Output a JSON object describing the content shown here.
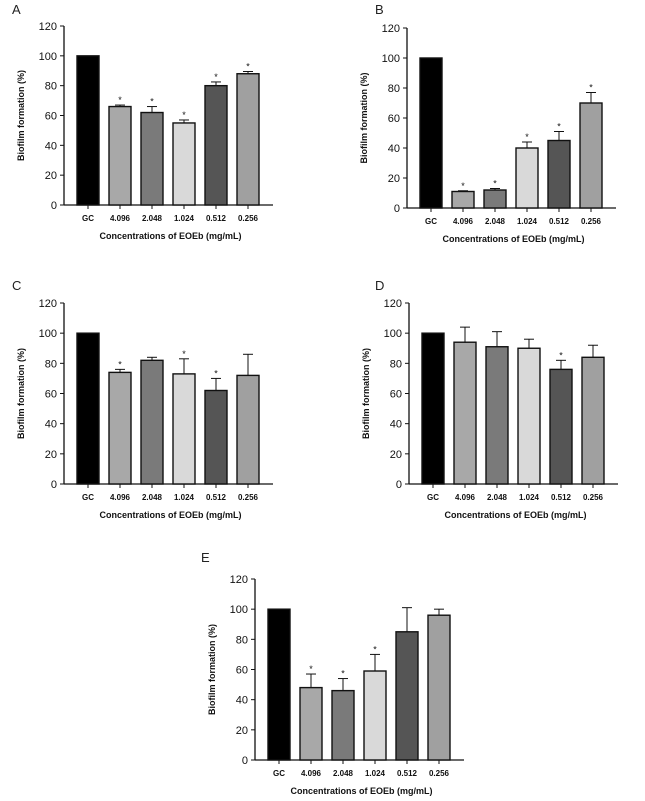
{
  "chart_data": [
    {
      "panel": "A",
      "type": "bar",
      "ylabel": "Biofilm formation (%)",
      "xlabel": "Concentrations of EOEb (mg/mL)",
      "ylim": [
        0,
        120
      ],
      "yticks": [
        0,
        20,
        40,
        60,
        80,
        100,
        120
      ],
      "categories": [
        "GC",
        "4.096",
        "2.048",
        "1.024",
        "0.512",
        "0.256"
      ],
      "values": [
        100,
        66,
        62,
        55,
        80,
        88
      ],
      "errors": [
        0,
        1,
        4,
        2,
        2.5,
        1.5
      ],
      "significant": [
        false,
        true,
        true,
        true,
        true,
        true
      ],
      "significance_marker": "*",
      "colors": [
        "#000000",
        "#a8a8a8",
        "#7a7a7a",
        "#d9d9d9",
        "#555555",
        "#a0a0a0"
      ]
    },
    {
      "panel": "B",
      "type": "bar",
      "ylabel": "Biofilm formation (%)",
      "xlabel": "Concentrations of EOEb (mg/mL)",
      "ylim": [
        0,
        120
      ],
      "yticks": [
        0,
        20,
        40,
        60,
        80,
        100,
        120
      ],
      "categories": [
        "GC",
        "4.096",
        "2.048",
        "1.024",
        "0.512",
        "0.256"
      ],
      "values": [
        100,
        11,
        12,
        40,
        45,
        70
      ],
      "errors": [
        0,
        0.5,
        1,
        4,
        6,
        7
      ],
      "significant": [
        false,
        true,
        true,
        true,
        true,
        true
      ],
      "significance_marker": "*",
      "colors": [
        "#000000",
        "#a8a8a8",
        "#7a7a7a",
        "#d9d9d9",
        "#555555",
        "#a0a0a0"
      ]
    },
    {
      "panel": "C",
      "type": "bar",
      "ylabel": "Biofilm formation (%)",
      "xlabel": "Concentrations of EOEb (mg/mL)",
      "ylim": [
        0,
        120
      ],
      "yticks": [
        0,
        20,
        40,
        60,
        80,
        100,
        120
      ],
      "categories": [
        "GC",
        "4.096",
        "2.048",
        "1.024",
        "0.512",
        "0.256"
      ],
      "values": [
        100,
        74,
        82,
        73,
        62,
        72
      ],
      "errors": [
        0,
        2,
        2,
        10,
        8,
        14
      ],
      "significant": [
        false,
        true,
        false,
        true,
        true,
        false
      ],
      "significance_marker": "*",
      "colors": [
        "#000000",
        "#a8a8a8",
        "#7a7a7a",
        "#d9d9d9",
        "#555555",
        "#a0a0a0"
      ]
    },
    {
      "panel": "D",
      "type": "bar",
      "ylabel": "Biofilm formation (%)",
      "xlabel": "Concentrations of EOEb (mg/mL)",
      "ylim": [
        0,
        120
      ],
      "yticks": [
        0,
        20,
        40,
        60,
        80,
        100,
        120
      ],
      "categories": [
        "GC",
        "4.096",
        "2.048",
        "1.024",
        "0.512",
        "0.256"
      ],
      "values": [
        100,
        94,
        91,
        90,
        76,
        84
      ],
      "errors": [
        0,
        10,
        10,
        6,
        6,
        8
      ],
      "significant": [
        false,
        false,
        false,
        false,
        true,
        false
      ],
      "significance_marker": "*",
      "colors": [
        "#000000",
        "#a8a8a8",
        "#7a7a7a",
        "#d9d9d9",
        "#555555",
        "#a0a0a0"
      ]
    },
    {
      "panel": "E",
      "type": "bar",
      "ylabel": "Biofilm formation (%)",
      "xlabel": "Concentrations of EOEb (mg/mL)",
      "ylim": [
        0,
        120
      ],
      "yticks": [
        0,
        20,
        40,
        60,
        80,
        100,
        120
      ],
      "categories": [
        "GC",
        "4.096",
        "2.048",
        "1.024",
        "0.512",
        "0.256"
      ],
      "values": [
        100,
        48,
        46,
        59,
        85,
        96
      ],
      "errors": [
        0,
        9,
        8,
        11,
        16,
        4
      ],
      "significant": [
        false,
        true,
        true,
        true,
        false,
        false
      ],
      "significance_marker": "*",
      "colors": [
        "#000000",
        "#a8a8a8",
        "#7a7a7a",
        "#d9d9d9",
        "#555555",
        "#a0a0a0"
      ]
    }
  ]
}
